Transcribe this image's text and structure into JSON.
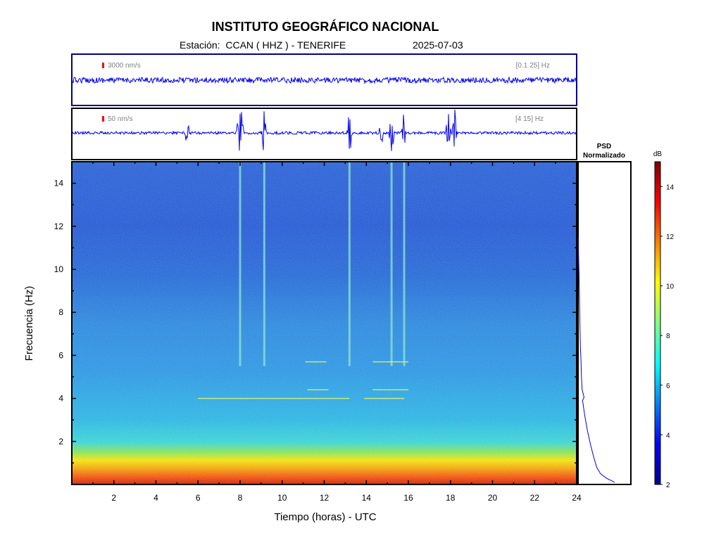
{
  "header": {
    "title": "INSTITUTO GEOGRÁFICO NACIONAL",
    "station_prefix": "Estación:",
    "station": "CCAN ( HHZ ) - TENERIFE",
    "date": "2025-07-03"
  },
  "colors": {
    "trace": "#0000ee",
    "scale_marker": "#ff0000",
    "frame": "#000080",
    "annotation": "#808080"
  },
  "chart_data": [
    {
      "type": "line",
      "name": "trace-broadband",
      "scale_label": "3000 nm/s",
      "filter_label": "[0.1 25] Hz",
      "x_range_hours": [
        0,
        24
      ],
      "events_hours": []
    },
    {
      "type": "line",
      "name": "trace-filtered",
      "scale_label": "50 nm/s",
      "filter_label": "[4 15] Hz",
      "x_range_hours": [
        0,
        24
      ],
      "events_hours": [
        5.5,
        7.95,
        8.0,
        8.05,
        9.15,
        13.2,
        14.7,
        15.2,
        15.8,
        17.9,
        18.2
      ]
    },
    {
      "type": "heatmap",
      "xlabel": "Tiempo (horas) - UTC",
      "ylabel": "Frecuencia  (Hz)",
      "xlim": [
        0,
        24
      ],
      "ylim": [
        0,
        15
      ],
      "xticks": [
        "2",
        "4",
        "6",
        "8",
        "10",
        "12",
        "14",
        "16",
        "18",
        "20",
        "22",
        "24"
      ],
      "yticks": [
        "2",
        "4",
        "6",
        "8",
        "10",
        "12",
        "14"
      ],
      "vertical_bands_hours": [
        8.0,
        9.15,
        13.2,
        15.2,
        15.8
      ],
      "horizontal_lines": [
        {
          "freq": 4.0,
          "x0": 6,
          "x1": 13.2
        },
        {
          "freq": 4.0,
          "x0": 13.9,
          "x1": 15.8
        },
        {
          "freq": 4.4,
          "x0": 11.2,
          "x1": 12.2
        },
        {
          "freq": 4.4,
          "x0": 14.3,
          "x1": 16.0
        },
        {
          "freq": 5.7,
          "x0": 11.1,
          "x1": 12.1
        },
        {
          "freq": 5.7,
          "x0": 14.3,
          "x1": 16.0
        }
      ]
    },
    {
      "type": "line",
      "title": "PSD\nNormalizado",
      "ylim": [
        0,
        15
      ],
      "xlim": [
        0,
        1
      ],
      "freq": [
        0.1,
        0.3,
        0.5,
        0.8,
        1.2,
        1.8,
        2.5,
        3.2,
        3.9,
        4.05,
        4.4,
        5.0,
        5.7,
        6.5,
        7.5,
        8.5,
        9.5,
        10.5,
        11.5
      ],
      "psd": [
        0.98,
        0.75,
        0.6,
        0.5,
        0.43,
        0.34,
        0.25,
        0.18,
        0.12,
        0.16,
        0.11,
        0.09,
        0.08,
        0.06,
        0.05,
        0.04,
        0.03,
        0.015,
        0.0
      ]
    },
    {
      "type": "colorbar",
      "unit": "dB",
      "range": [
        2,
        15
      ],
      "ticks": [
        "2",
        "4",
        "6",
        "8",
        "10",
        "12",
        "14"
      ]
    }
  ]
}
